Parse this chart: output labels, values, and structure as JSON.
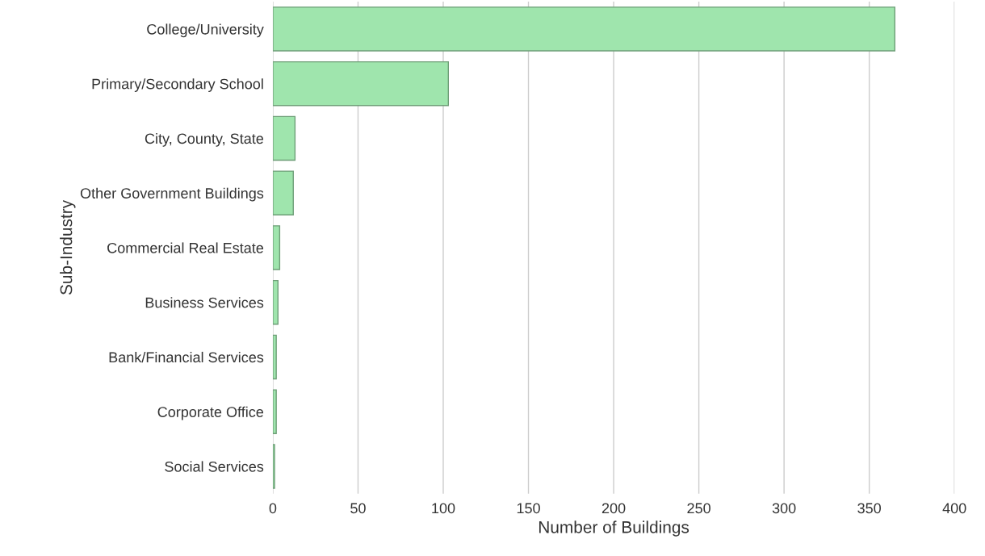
{
  "chart_data": {
    "type": "bar",
    "orientation": "horizontal",
    "xlabel": "Number of Buildings",
    "ylabel": "Sub-Industry",
    "categories": [
      "College/University",
      "Primary/Secondary School",
      "City, County, State",
      "Other Government Buildings",
      "Commercial Real Estate",
      "Business Services",
      "Bank/Financial Services",
      "Corporate Office",
      "Social Services"
    ],
    "values": [
      365,
      103,
      13,
      12,
      4,
      3,
      2,
      2,
      1
    ],
    "color": "#9fe5ad",
    "xlim": [
      0,
      400
    ],
    "xticks": [
      0,
      50,
      100,
      150,
      200,
      250,
      300,
      350,
      400
    ],
    "grid": "x",
    "legend": false
  }
}
